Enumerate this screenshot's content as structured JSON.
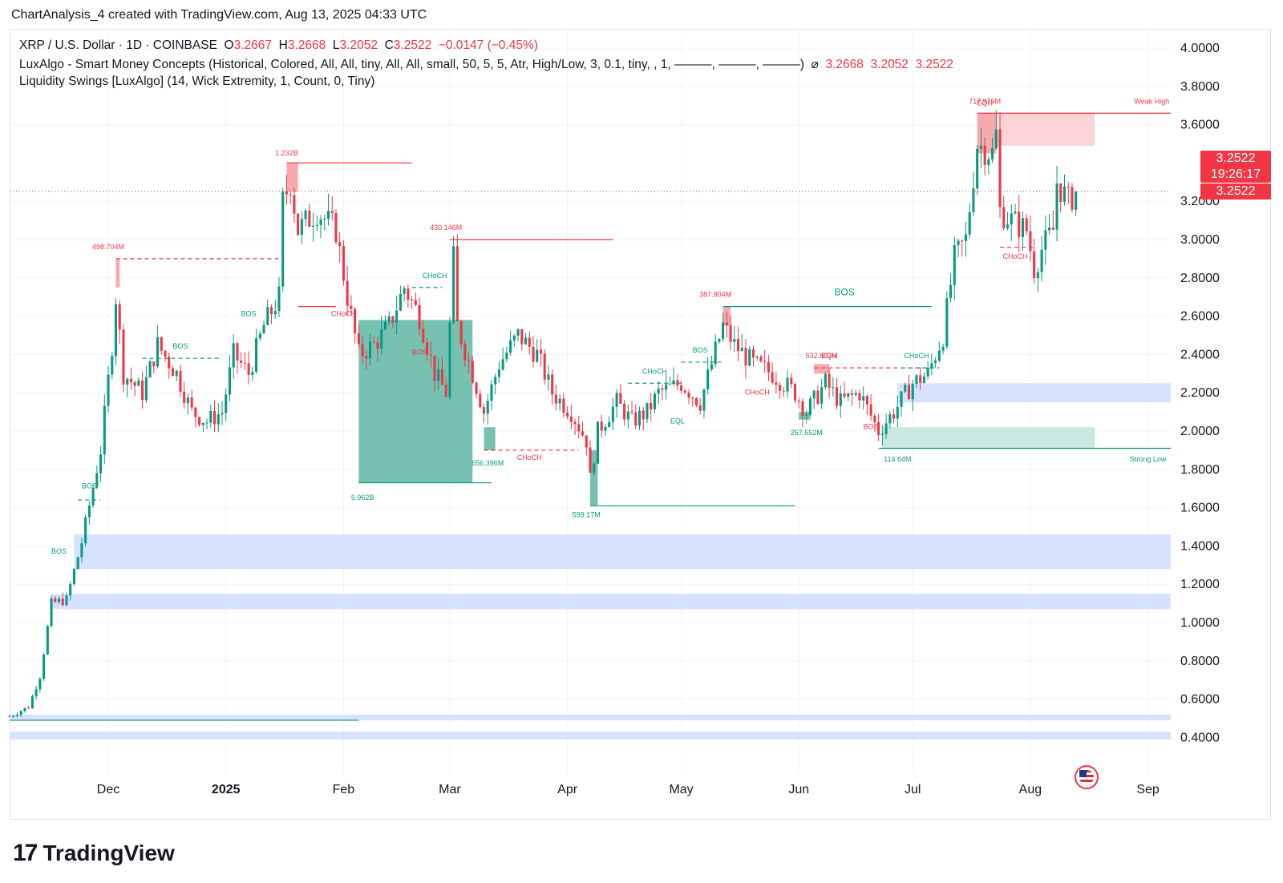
{
  "header": {
    "attribution": "ChartAnalysis_4 created with TradingView.com, Aug 13, 2025 04:33 UTC"
  },
  "legend": {
    "symbol_line": "XRP / U.S. Dollar · 1D · COINBASE",
    "open_label": "O",
    "open": "3.2667",
    "high_label": "H",
    "high": "3.2668",
    "low_label": "L",
    "low": "3.2052",
    "close_label": "C",
    "close": "3.2522",
    "change": "−0.0147 (−0.45%)",
    "indicator1": "LuxAlgo - Smart Money Concepts (Historical, Colored, All, All, tiny, All, All, small, 50, 5, 5, Atr, High/Low, 3, 0.1, tiny, , 1, ———, ———, ———)",
    "indicator1_icon": "eye-slash-icon",
    "indicator1_values": [
      "3.2668",
      "3.2052",
      "3.2522"
    ],
    "indicator2": "Liquidity Swings [LuxAlgo] (14, Wick Extremity, 1, Count, 0, Tiny)"
  },
  "price_label": {
    "value_top": "3.2522",
    "countdown": "19:26:17",
    "value_bottom": "3.2522"
  },
  "colors": {
    "up": "#089981",
    "down": "#f23645",
    "blue_zone": "#d6e2ff",
    "bull_ob": "#5fb6a3",
    "bear_ob": "#f7a9ae"
  },
  "brand": {
    "logo": "17",
    "name": "TradingView"
  },
  "chart_data": {
    "type": "candlestick",
    "title": "XRP / U.S. Dollar · 1D · COINBASE",
    "ylim": [
      0.3,
      4.2
    ],
    "y_ticks": [
      "4.0000",
      "3.8000",
      "3.6000",
      "3.2000",
      "3.0000",
      "2.8000",
      "2.6000",
      "2.4000",
      "2.2000",
      "2.0000",
      "1.8000",
      "1.6000",
      "1.4000",
      "1.2000",
      "1.0000",
      "0.8000",
      "0.6000",
      "0.4000"
    ],
    "x_ticks": [
      {
        "label": "Dec",
        "date": "2024-12-01",
        "bold": false
      },
      {
        "label": "2025",
        "date": "2025-01-01",
        "bold": true
      },
      {
        "label": "Feb",
        "date": "2025-02-01",
        "bold": false
      },
      {
        "label": "Mar",
        "date": "2025-03-01",
        "bold": false
      },
      {
        "label": "Apr",
        "date": "2025-04-01",
        "bold": false
      },
      {
        "label": "May",
        "date": "2025-05-01",
        "bold": false
      },
      {
        "label": "Jun",
        "date": "2025-06-01",
        "bold": false
      },
      {
        "label": "Jul",
        "date": "2025-07-01",
        "bold": false
      },
      {
        "label": "Aug",
        "date": "2025-08-01",
        "bold": false
      },
      {
        "label": "Sep",
        "date": "2025-09-01",
        "bold": false
      }
    ],
    "x_range": [
      "2024-11-05",
      "2025-09-07"
    ],
    "last_price": 3.2522,
    "series_keyframes": [
      [
        "2024-11-05",
        0.51
      ],
      [
        "2024-11-10",
        0.56
      ],
      [
        "2024-11-13",
        0.72
      ],
      [
        "2024-11-16",
        1.1
      ],
      [
        "2024-11-20",
        1.12
      ],
      [
        "2024-11-24",
        1.42
      ],
      [
        "2024-11-29",
        1.9
      ],
      [
        "2024-12-02",
        2.45
      ],
      [
        "2024-12-03",
        2.7
      ],
      [
        "2024-12-05",
        2.3
      ],
      [
        "2024-12-10",
        2.2
      ],
      [
        "2024-12-14",
        2.45
      ],
      [
        "2024-12-19",
        2.3
      ],
      [
        "2024-12-23",
        2.1
      ],
      [
        "2024-12-27",
        2.05
      ],
      [
        "2024-12-31",
        2.1
      ],
      [
        "2025-01-03",
        2.4
      ],
      [
        "2025-01-07",
        2.3
      ],
      [
        "2025-01-11",
        2.55
      ],
      [
        "2025-01-15",
        2.7
      ],
      [
        "2025-01-16",
        3.2
      ],
      [
        "2025-01-18",
        3.3
      ],
      [
        "2025-01-20",
        3.05
      ],
      [
        "2025-01-25",
        3.15
      ],
      [
        "2025-01-30",
        3.05
      ],
      [
        "2025-02-02",
        2.7
      ],
      [
        "2025-02-05",
        2.4
      ],
      [
        "2025-02-09",
        2.45
      ],
      [
        "2025-02-13",
        2.55
      ],
      [
        "2025-02-17",
        2.75
      ],
      [
        "2025-02-21",
        2.6
      ],
      [
        "2025-02-25",
        2.3
      ],
      [
        "2025-02-28",
        2.2
      ],
      [
        "2025-03-02",
        2.9
      ],
      [
        "2025-03-03",
        2.55
      ],
      [
        "2025-03-07",
        2.3
      ],
      [
        "2025-03-10",
        2.1
      ],
      [
        "2025-03-14",
        2.35
      ],
      [
        "2025-03-19",
        2.5
      ],
      [
        "2025-03-24",
        2.4
      ],
      [
        "2025-03-28",
        2.2
      ],
      [
        "2025-04-02",
        2.1
      ],
      [
        "2025-04-06",
        1.95
      ],
      [
        "2025-04-07",
        1.75
      ],
      [
        "2025-04-09",
        2.0
      ],
      [
        "2025-04-14",
        2.15
      ],
      [
        "2025-04-18",
        2.05
      ],
      [
        "2025-04-22",
        2.1
      ],
      [
        "2025-04-25",
        2.2
      ],
      [
        "2025-05-01",
        2.25
      ],
      [
        "2025-05-06",
        2.15
      ],
      [
        "2025-05-09",
        2.35
      ],
      [
        "2025-05-12",
        2.55
      ],
      [
        "2025-05-15",
        2.45
      ],
      [
        "2025-05-20",
        2.35
      ],
      [
        "2025-05-25",
        2.3
      ],
      [
        "2025-05-31",
        2.2
      ],
      [
        "2025-06-03",
        2.1
      ],
      [
        "2025-06-08",
        2.25
      ],
      [
        "2025-06-12",
        2.15
      ],
      [
        "2025-06-17",
        2.2
      ],
      [
        "2025-06-22",
        2.0
      ],
      [
        "2025-06-26",
        2.1
      ],
      [
        "2025-07-01",
        2.25
      ],
      [
        "2025-07-05",
        2.3
      ],
      [
        "2025-07-09",
        2.5
      ],
      [
        "2025-07-12",
        2.9
      ],
      [
        "2025-07-15",
        3.0
      ],
      [
        "2025-07-18",
        3.5
      ],
      [
        "2025-07-22",
        3.45
      ],
      [
        "2025-07-23",
        3.55
      ],
      [
        "2025-07-24",
        3.15
      ],
      [
        "2025-07-27",
        3.1
      ],
      [
        "2025-07-31",
        3.05
      ],
      [
        "2025-08-02",
        2.85
      ],
      [
        "2025-08-04",
        2.95
      ],
      [
        "2025-08-07",
        3.05
      ],
      [
        "2025-08-08",
        3.3
      ],
      [
        "2025-08-11",
        3.2
      ],
      [
        "2025-08-13",
        3.25
      ]
    ],
    "zones": [
      {
        "kind": "blue",
        "from": "2025-06-27",
        "to": "2025-09-07",
        "y1": 2.15,
        "y2": 2.25
      },
      {
        "kind": "blue",
        "from": "2024-11-22",
        "to": "2025-09-07",
        "y1": 1.28,
        "y2": 1.46
      },
      {
        "kind": "blue",
        "from": "2024-11-16",
        "to": "2025-09-07",
        "y1": 1.07,
        "y2": 1.15
      },
      {
        "kind": "blue",
        "from": "2024-11-05",
        "to": "2025-09-07",
        "y1": 0.49,
        "y2": 0.52
      },
      {
        "kind": "blue",
        "from": "2024-11-05",
        "to": "2025-09-07",
        "y1": 0.39,
        "y2": 0.43
      },
      {
        "kind": "bull",
        "from": "2025-02-05",
        "to": "2025-03-07",
        "y1": 1.73,
        "y2": 2.58
      },
      {
        "kind": "bull",
        "from": "2025-03-10",
        "to": "2025-03-13",
        "y1": 1.9,
        "y2": 2.02
      },
      {
        "kind": "bull",
        "from": "2025-04-07",
        "to": "2025-04-09",
        "y1": 1.61,
        "y2": 1.9
      },
      {
        "kind": "bull_light",
        "from": "2025-06-23",
        "to": "2025-08-18",
        "y1": 1.91,
        "y2": 2.02
      },
      {
        "kind": "bull",
        "from": "2025-06-01",
        "to": "2025-06-04",
        "y1": 2.06,
        "y2": 2.1
      },
      {
        "kind": "bear",
        "from": "2025-01-17",
        "to": "2025-01-20",
        "y1": 3.25,
        "y2": 3.4
      },
      {
        "kind": "bear",
        "from": "2024-12-03",
        "to": "2024-12-04",
        "y1": 2.75,
        "y2": 2.9
      },
      {
        "kind": "bear",
        "from": "2025-05-12",
        "to": "2025-05-14",
        "y1": 2.55,
        "y2": 2.65
      },
      {
        "kind": "bear",
        "from": "2025-06-05",
        "to": "2025-06-09",
        "y1": 2.3,
        "y2": 2.35
      },
      {
        "kind": "bear",
        "from": "2025-07-18",
        "to": "2025-07-23",
        "y1": 3.45,
        "y2": 3.66
      },
      {
        "kind": "bear_light",
        "from": "2025-07-23",
        "to": "2025-08-18",
        "y1": 3.49,
        "y2": 3.66
      }
    ],
    "levels": [
      {
        "color": "up",
        "from": "2024-11-05",
        "to": "2025-02-05",
        "y": 0.49,
        "dash": false
      },
      {
        "color": "down",
        "from": "2025-01-17",
        "to": "2025-02-19",
        "y": 3.4,
        "dash": false
      },
      {
        "color": "down",
        "from": "2025-03-01",
        "to": "2025-04-13",
        "y": 3.0,
        "dash": false
      },
      {
        "color": "up",
        "from": "2025-05-12",
        "to": "2025-07-06",
        "y": 2.65,
        "dash": false
      },
      {
        "color": "down",
        "from": "2025-07-18",
        "to": "2025-09-07",
        "y": 3.66,
        "dash": false
      },
      {
        "color": "up",
        "from": "2025-06-22",
        "to": "2025-09-07",
        "y": 1.91,
        "dash": false
      },
      {
        "color": "up",
        "from": "2025-04-07",
        "to": "2025-05-31",
        "y": 1.61,
        "dash": false
      },
      {
        "color": "up",
        "from": "2025-02-05",
        "to": "2025-03-12",
        "y": 1.73,
        "dash": false
      },
      {
        "color": "down",
        "from": "2024-12-03",
        "to": "2025-01-16",
        "y": 2.9,
        "dash": true
      },
      {
        "color": "down",
        "from": "2025-03-10",
        "to": "2025-04-04",
        "y": 1.9,
        "dash": true
      },
      {
        "color": "down",
        "from": "2025-06-05",
        "to": "2025-07-06",
        "y": 2.33,
        "dash": true
      },
      {
        "color": "up",
        "from": "2025-02-19",
        "to": "2025-02-27",
        "y": 2.75,
        "dash": true
      },
      {
        "color": "up",
        "from": "2024-12-10",
        "to": "2024-12-31",
        "y": 2.38,
        "dash": true
      },
      {
        "color": "up",
        "from": "2024-11-23",
        "to": "2024-11-29",
        "y": 1.64,
        "dash": true
      },
      {
        "color": "up",
        "from": "2025-04-17",
        "to": "2025-05-01",
        "y": 2.25,
        "dash": true
      },
      {
        "color": "up",
        "from": "2025-05-01",
        "to": "2025-05-12",
        "y": 2.36,
        "dash": true
      },
      {
        "color": "up",
        "from": "2025-06-28",
        "to": "2025-07-08",
        "y": 2.33,
        "dash": true
      },
      {
        "color": "down",
        "from": "2025-07-24",
        "to": "2025-08-02",
        "y": 2.96,
        "dash": true
      },
      {
        "color": "down",
        "from": "2025-01-20",
        "to": "2025-01-30",
        "y": 2.65,
        "dash": false
      }
    ],
    "annotations": [
      {
        "text": "1.232B",
        "date": "2025-01-17",
        "y": 3.44,
        "color": "down",
        "size": 9
      },
      {
        "text": "498.704M",
        "date": "2024-12-01",
        "y": 2.95,
        "color": "down",
        "size": 9
      },
      {
        "text": "430.146M",
        "date": "2025-02-28",
        "y": 3.05,
        "color": "down",
        "size": 9
      },
      {
        "text": "387.904M",
        "date": "2025-05-10",
        "y": 2.7,
        "color": "down",
        "size": 9
      },
      {
        "text": "717.979M",
        "date": "2025-07-20",
        "y": 3.71,
        "color": "down",
        "size": 9
      },
      {
        "text": "EQH",
        "date": "2025-07-20",
        "y": 3.7,
        "color": "down",
        "size": 9
      },
      {
        "text": "Weak High",
        "date": "2025-09-02",
        "y": 3.71,
        "color": "down",
        "size": 9
      },
      {
        "text": "532.892M",
        "date": "2025-06-07",
        "y": 2.38,
        "color": "down",
        "size": 9
      },
      {
        "text": "EQH",
        "date": "2025-06-09",
        "y": 2.38,
        "color": "down",
        "size": 9
      },
      {
        "text": "CHoCH",
        "date": "2025-02-01",
        "y": 2.6,
        "color": "down",
        "size": 9
      },
      {
        "text": "BOS",
        "date": "2025-02-21",
        "y": 2.4,
        "color": "down",
        "size": 9
      },
      {
        "text": "CHoCH",
        "date": "2025-03-22",
        "y": 1.85,
        "color": "down",
        "size": 9
      },
      {
        "text": "CHoCH",
        "date": "2025-05-21",
        "y": 2.19,
        "color": "down",
        "size": 9
      },
      {
        "text": "BOS",
        "date": "2025-06-20",
        "y": 2.01,
        "color": "down",
        "size": 9
      },
      {
        "text": "CHoCH",
        "date": "2025-07-28",
        "y": 2.9,
        "color": "down",
        "size": 9
      },
      {
        "text": "CHoCH",
        "date": "2025-02-25",
        "y": 2.8,
        "color": "up",
        "size": 9
      },
      {
        "text": "BOS",
        "date": "2024-12-20",
        "y": 2.43,
        "color": "up",
        "size": 9
      },
      {
        "text": "BOS",
        "date": "2025-01-07",
        "y": 2.6,
        "color": "up",
        "size": 9
      },
      {
        "text": "BOS",
        "date": "2024-11-26",
        "y": 1.7,
        "color": "up",
        "size": 9
      },
      {
        "text": "BOS",
        "date": "2024-11-18",
        "y": 1.36,
        "color": "up",
        "size": 9
      },
      {
        "text": "CHoCH",
        "date": "2025-04-24",
        "y": 2.3,
        "color": "up",
        "size": 9
      },
      {
        "text": "EQL",
        "date": "2025-04-30",
        "y": 2.04,
        "color": "up",
        "size": 9
      },
      {
        "text": "BOS",
        "date": "2025-05-06",
        "y": 2.41,
        "color": "up",
        "size": 9
      },
      {
        "text": "BOS",
        "date": "2025-06-13",
        "y": 2.71,
        "color": "up",
        "size": 12
      },
      {
        "text": "CHoCH",
        "date": "2025-07-02",
        "y": 2.38,
        "color": "up",
        "size": 9
      },
      {
        "text": "5.962B",
        "date": "2025-02-06",
        "y": 1.64,
        "color": "up",
        "size": 9
      },
      {
        "text": "656.396M",
        "date": "2025-03-11",
        "y": 1.82,
        "color": "up",
        "size": 9
      },
      {
        "text": "599.17M",
        "date": "2025-04-06",
        "y": 1.55,
        "color": "up",
        "size": 9
      },
      {
        "text": "257.552M",
        "date": "2025-06-03",
        "y": 1.98,
        "color": "up",
        "size": 9
      },
      {
        "text": "114.64M",
        "date": "2025-06-27",
        "y": 1.84,
        "color": "up",
        "size": 9
      },
      {
        "text": "Strong Low",
        "date": "2025-09-01",
        "y": 1.84,
        "color": "up",
        "size": 9
      }
    ]
  }
}
